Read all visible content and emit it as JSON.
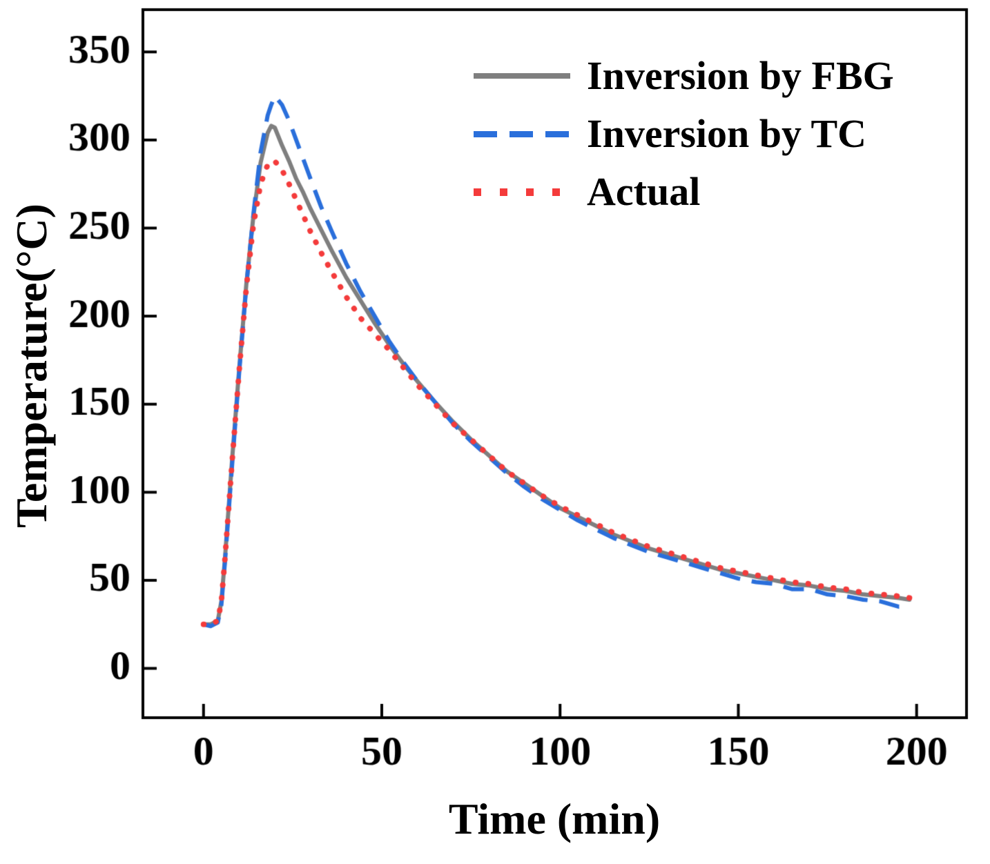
{
  "figure": {
    "x_label": "Time (min)",
    "y_label": "Temperature(°C)"
  },
  "chart_data": {
    "type": "line",
    "title": "",
    "xlabel": "Time (min)",
    "ylabel": "Temperature(°C)",
    "xlim": [
      -17,
      214
    ],
    "ylim": [
      -28,
      374
    ],
    "x_ticks": [
      0,
      50,
      100,
      150,
      200
    ],
    "y_ticks": [
      0,
      50,
      100,
      150,
      200,
      250,
      300,
      350
    ],
    "grid": false,
    "legend_position": "upper-right-inside",
    "x": [
      0,
      2,
      4,
      5,
      6,
      8,
      10,
      12,
      14,
      16,
      18,
      19,
      20,
      22,
      24,
      26,
      28,
      30,
      33,
      36,
      40,
      44,
      48,
      52,
      56,
      60,
      65,
      70,
      75,
      80,
      85,
      90,
      95,
      100,
      105,
      110,
      115,
      120,
      125,
      130,
      135,
      140,
      145,
      150,
      155,
      160,
      165,
      170,
      175,
      180,
      185,
      190,
      195,
      198
    ],
    "series": [
      {
        "name": "Inversion by FBG",
        "color": "#7f7f7f",
        "line_style": "solid",
        "line_width": 6,
        "values": [
          25,
          25,
          27,
          38,
          62,
          118,
          170,
          218,
          257,
          287,
          304,
          308,
          307,
          297,
          288,
          278,
          270,
          261,
          249,
          237,
          222,
          209,
          196,
          184,
          173,
          163,
          151,
          140,
          130,
          121,
          112,
          105,
          98,
          91,
          86,
          81,
          76,
          72,
          68,
          65,
          62,
          59,
          56,
          54,
          52,
          50,
          48,
          47,
          45,
          44,
          42,
          41,
          40,
          39
        ]
      },
      {
        "name": "Inversion by TC",
        "color": "#2a6fdb",
        "line_style": "dashed",
        "line_width": 6,
        "values": [
          25,
          24,
          26,
          36,
          60,
          115,
          168,
          217,
          258,
          293,
          314,
          320,
          325,
          320,
          311,
          300,
          289,
          278,
          262,
          248,
          230,
          214,
          200,
          186,
          174,
          163,
          151,
          139,
          129,
          120,
          111,
          103,
          96,
          90,
          84,
          79,
          74,
          70,
          66,
          63,
          60,
          57,
          54,
          51,
          49,
          48,
          45,
          45,
          42,
          41,
          39,
          38,
          35,
          35
        ]
      },
      {
        "name": "Actual",
        "color": "#f43b3b",
        "line_style": "dotted",
        "line_width": 8,
        "values": [
          25,
          25,
          27,
          38,
          62,
          117,
          169,
          216,
          252,
          275,
          286,
          288,
          288,
          283,
          275,
          266,
          257,
          248,
          236,
          225,
          211,
          199,
          190,
          181,
          171,
          161,
          150,
          139,
          130,
          121,
          112,
          105,
          98,
          92,
          87,
          82,
          77,
          73,
          69,
          66,
          63,
          60,
          57,
          55,
          53,
          51,
          49,
          48,
          46,
          45,
          43,
          42,
          41,
          40
        ]
      }
    ]
  }
}
